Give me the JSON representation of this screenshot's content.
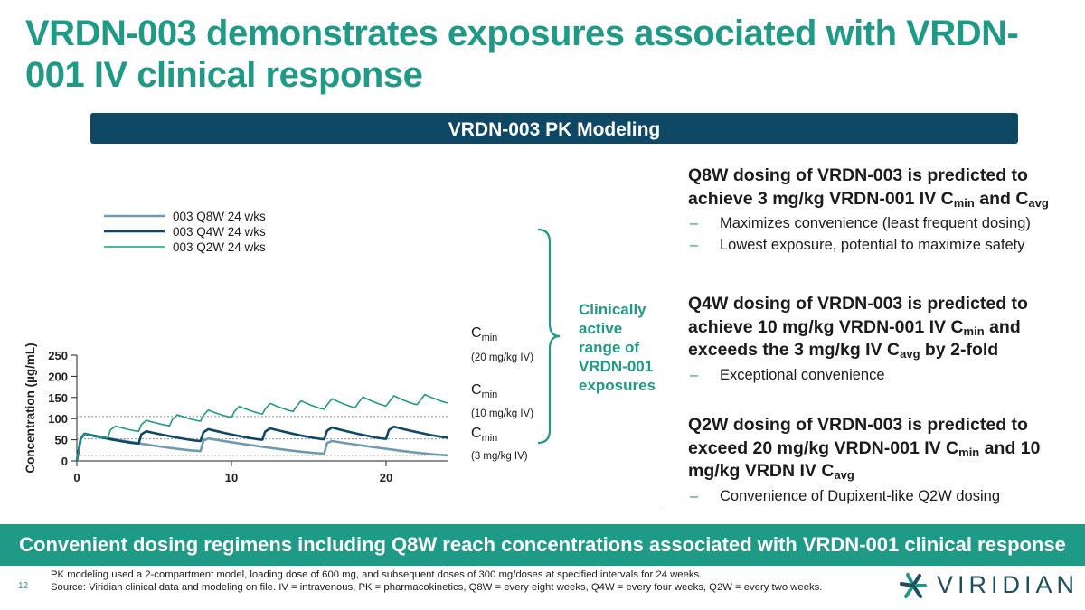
{
  "title": "VRDN-003 demonstrates exposures associated with VRDN-001 IV clinical response",
  "banner": "VRDN-003 PK Modeling",
  "chart_data": {
    "type": "line",
    "ylabel": "Concentration (µg/mL)",
    "xlabel": "",
    "xlim": [
      0,
      24
    ],
    "ylim": [
      0,
      250
    ],
    "xticks": [
      "0",
      "10",
      "20"
    ],
    "yticks": [
      "0",
      "50",
      "100",
      "150",
      "200",
      "250"
    ],
    "series": [
      {
        "name": "003 Q8W 24 wks",
        "color": "#6f9bb0",
        "loading_dose_week": 0,
        "dose_weeks": [
          8,
          16
        ],
        "peaks": [
          64,
          53,
          47
        ],
        "troughs_before_dose": [
          23,
          17
        ],
        "final_value": 13
      },
      {
        "name": "003 Q4W 24 wks",
        "color": "#0f4864",
        "loading_dose_week": 0,
        "dose_weeks": [
          4,
          8,
          12,
          16,
          20
        ],
        "peaks": [
          64,
          70,
          75,
          77,
          79,
          81
        ],
        "troughs_before_dose": [
          41,
          47,
          50,
          51,
          52
        ],
        "final_value": 55
      },
      {
        "name": "003 Q2W 24 wks",
        "color": "#1f9a86",
        "loading_dose_week": 0,
        "dose_weeks": [
          2,
          4,
          6,
          8,
          10,
          12,
          14,
          16,
          18,
          20,
          22
        ],
        "peaks": [
          64,
          82,
          96,
          109,
          120,
          129,
          136,
          142,
          147,
          151,
          154,
          157
        ],
        "troughs_before_dose": [
          54,
          70,
          83,
          94,
          103,
          111,
          117,
          122,
          126,
          130,
          133
        ],
        "final_value": 137
      }
    ],
    "reference_lines": [
      {
        "label": "C",
        "sub": "min",
        "note": "(20 mg/kg IV)",
        "y": 105
      },
      {
        "label": "C",
        "sub": "min",
        "note": "(10 mg/kg IV)",
        "y": 52
      },
      {
        "label": "C",
        "sub": "min",
        "note": "(3 mg/kg IV)",
        "y": 13
      }
    ],
    "range_annotation": "Clinically active range of VRDN-001 exposures",
    "range_lines": [
      "Clinically",
      "active",
      "range of",
      "VRDN-001",
      "exposures"
    ]
  },
  "right": [
    {
      "head_parts": [
        {
          "t": "Q8W dosing of VRDN-003 is predicted to achieve 3 mg/kg VRDN-001 IV C"
        },
        {
          "s": "min"
        },
        {
          "t": " and C"
        },
        {
          "s": "avg"
        }
      ],
      "bullets": [
        "Maximizes convenience (least frequent dosing)",
        "Lowest exposure, potential to maximize safety"
      ]
    },
    {
      "head_parts": [
        {
          "t": "Q4W dosing of VRDN-003 is predicted to achieve 10 mg/kg VRDN-001 IV C"
        },
        {
          "s": "min"
        },
        {
          "t": " and exceeds the 3 mg/kg IV C"
        },
        {
          "s": "avg"
        },
        {
          "t": " by 2-fold"
        }
      ],
      "bullets": [
        "Exceptional convenience"
      ]
    },
    {
      "head_parts": [
        {
          "t": "Q2W dosing of VRDN-003 is predicted to exceed 20 mg/kg VRDN-001 IV C"
        },
        {
          "s": "min"
        },
        {
          "t": " and 10 mg/kg VRDN IV C"
        },
        {
          "s": "avg"
        }
      ],
      "bullets": [
        "Convenience of Dupixent-like Q2W dosing"
      ]
    }
  ],
  "bottom_bar": "Convenient dosing regimens including Q8W reach concentrations associated with VRDN-001 clinical response",
  "footnotes": [
    "PK modeling used a 2-compartment model, loading dose of 600 mg, and subsequent doses of 300 mg/doses at specified intervals for 24 weeks.",
    "Source: Viridian clinical data and modeling on file. IV = intravenous, PK = pharmacokinetics, Q8W = every eight weeks, Q4W = every four weeks, Q2W = every two weeks."
  ],
  "page_number": "12",
  "logo_text": "VIRIDIAN",
  "colors": {
    "teal": "#1f9a86",
    "navy": "#0f4864",
    "slate": "#6f9bb0"
  }
}
